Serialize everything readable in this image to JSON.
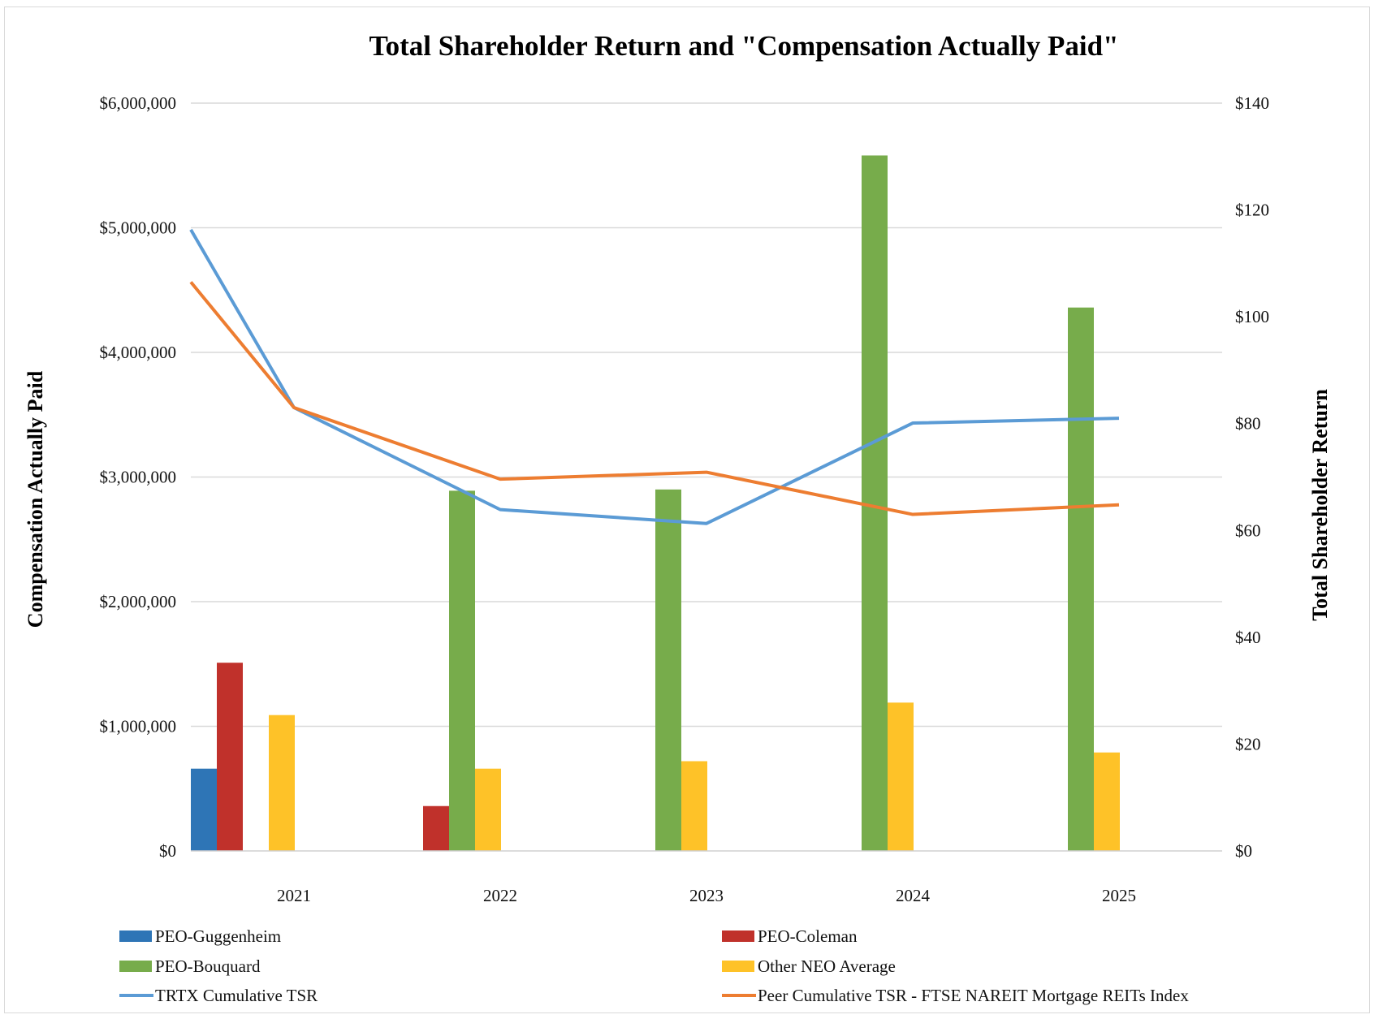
{
  "chart_data": {
    "type": "bar",
    "title": "Total Shareholder Return and \"Compensation Actually Paid\"",
    "ylabel": "Compensation Actually Paid",
    "y2label": "Total Shareholder Return",
    "categories": [
      "2021",
      "2022",
      "2023",
      "2024",
      "2025"
    ],
    "ylim": [
      0,
      6000000
    ],
    "y2lim": [
      0,
      140
    ],
    "yticks": [
      "$0",
      "$1,000,000",
      "$2,000,000",
      "$3,000,000",
      "$4,000,000",
      "$5,000,000",
      "$6,000,000"
    ],
    "y2ticks": [
      "$0",
      "$20",
      "$40",
      "$60",
      "$80",
      "$100",
      "$120",
      "$140"
    ],
    "grid": true,
    "legend_position": "bottom",
    "bar_series": [
      {
        "name": "PEO-Guggenheim",
        "color": "#2e75b6",
        "values": [
          660000,
          null,
          null,
          null,
          null
        ]
      },
      {
        "name": "PEO-Coleman",
        "color": "#c0312b",
        "values": [
          1510000,
          360000,
          null,
          null,
          null
        ]
      },
      {
        "name": "PEO-Bouquard",
        "color": "#77ac4b",
        "values": [
          null,
          2890000,
          2900000,
          5580000,
          4360000
        ]
      },
      {
        "name": "Other NEO Average",
        "color": "#fec228",
        "values": [
          1090000,
          660000,
          720000,
          1190000,
          790000
        ]
      }
    ],
    "line_x": [
      "2021",
      "2021.5",
      "2022.5",
      "2023.5",
      "2024.5",
      "2025.5"
    ],
    "line_series": [
      {
        "name": "TRTX Cumulative TSR",
        "color": "#5b9bd5",
        "values": [
          116.3,
          83.0,
          63.9,
          61.3,
          80.1,
          81.0
        ]
      },
      {
        "name": "Peer Cumulative TSR - FTSE NAREIT Mortgage REITs Index",
        "color": "#ed7d31",
        "values": [
          106.5,
          83.0,
          69.6,
          70.9,
          63.0,
          64.8
        ]
      }
    ]
  }
}
